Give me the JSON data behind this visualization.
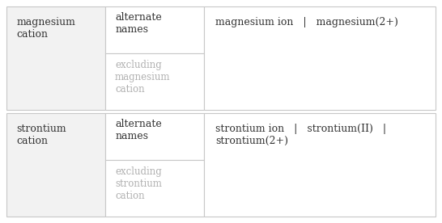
{
  "rows": [
    {
      "col1": "magnesium\ncation",
      "col2_top": "alternate\nnames",
      "col2_bot": "excluding\nmagnesium\ncation",
      "col3": "magnesium ion   |   magnesium(2+)"
    },
    {
      "col1": "strontium\ncation",
      "col2_top": "alternate\nnames",
      "col2_bot": "excluding\nstrontium\ncation",
      "col3": "strontium ion   |   strontium(II)   |\nstrontium(2+)"
    }
  ],
  "bg_color": "#ffffff",
  "cell1_bg": "#f2f2f2",
  "cell_border_color": "#c8c8c8",
  "text_color_main": "#333333",
  "text_color_gray": "#b0b0b0",
  "font_size_main": 9.0,
  "font_size_gray": 8.5
}
